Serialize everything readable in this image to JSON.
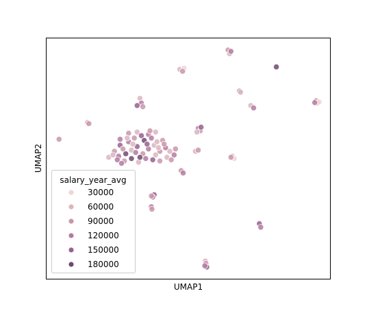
{
  "chart_data": {
    "type": "scatter",
    "xlabel": "UMAP1",
    "ylabel": "UMAP2",
    "xlim": [
      0,
      10
    ],
    "ylim": [
      0,
      10
    ],
    "xticks": false,
    "yticks": false,
    "grid": false,
    "legend": {
      "title": "salary_year_avg",
      "placement": "bottom-left",
      "entries": [
        {
          "label": "30000",
          "color": "#efd6d4"
        },
        {
          "label": "60000",
          "color": "#dbb6bd"
        },
        {
          "label": "90000",
          "color": "#c997ad"
        },
        {
          "label": "120000",
          "color": "#b47aa2"
        },
        {
          "label": "150000",
          "color": "#966290"
        },
        {
          "label": "180000",
          "color": "#6e4a72"
        }
      ]
    },
    "points": [
      {
        "x": 6.4,
        "y": 9.5,
        "v": 90000
      },
      {
        "x": 6.45,
        "y": 9.35,
        "v": 60000
      },
      {
        "x": 6.5,
        "y": 9.45,
        "v": 120000
      },
      {
        "x": 8.1,
        "y": 8.8,
        "v": 180000
      },
      {
        "x": 4.7,
        "y": 8.7,
        "v": 60000
      },
      {
        "x": 4.85,
        "y": 8.75,
        "v": 30000
      },
      {
        "x": 4.8,
        "y": 8.62,
        "v": 90000
      },
      {
        "x": 6.8,
        "y": 7.8,
        "v": 90000
      },
      {
        "x": 6.84,
        "y": 7.75,
        "v": 60000
      },
      {
        "x": 3.3,
        "y": 7.5,
        "v": 60000
      },
      {
        "x": 3.35,
        "y": 7.3,
        "v": 120000
      },
      {
        "x": 3.4,
        "y": 7.15,
        "v": 90000
      },
      {
        "x": 3.2,
        "y": 7.2,
        "v": 150000
      },
      {
        "x": 7.2,
        "y": 7.2,
        "v": 60000
      },
      {
        "x": 7.3,
        "y": 7.1,
        "v": 120000
      },
      {
        "x": 9.5,
        "y": 7.4,
        "v": 90000
      },
      {
        "x": 9.55,
        "y": 7.3,
        "v": 60000
      },
      {
        "x": 9.6,
        "y": 7.35,
        "v": 30000
      },
      {
        "x": 9.45,
        "y": 7.32,
        "v": 120000
      },
      {
        "x": 1.45,
        "y": 6.5,
        "v": 60000
      },
      {
        "x": 1.5,
        "y": 6.45,
        "v": 90000
      },
      {
        "x": 5.35,
        "y": 6.25,
        "v": 120000
      },
      {
        "x": 5.42,
        "y": 6.15,
        "v": 90000
      },
      {
        "x": 5.45,
        "y": 6.3,
        "v": 150000
      },
      {
        "x": 5.3,
        "y": 6.1,
        "v": 60000
      },
      {
        "x": 0.45,
        "y": 5.8,
        "v": 90000
      },
      {
        "x": 5.25,
        "y": 5.3,
        "v": 60000
      },
      {
        "x": 5.35,
        "y": 5.35,
        "v": 90000
      },
      {
        "x": 6.55,
        "y": 5.1,
        "v": 60000
      },
      {
        "x": 6.62,
        "y": 5.0,
        "v": 30000
      },
      {
        "x": 6.5,
        "y": 5.05,
        "v": 90000
      },
      {
        "x": 4.75,
        "y": 4.5,
        "v": 90000
      },
      {
        "x": 4.82,
        "y": 4.4,
        "v": 120000
      },
      {
        "x": 3.8,
        "y": 3.5,
        "v": 150000
      },
      {
        "x": 3.75,
        "y": 3.4,
        "v": 120000
      },
      {
        "x": 3.7,
        "y": 3.45,
        "v": 90000
      },
      {
        "x": 3.7,
        "y": 3.0,
        "v": 120000
      },
      {
        "x": 3.72,
        "y": 2.9,
        "v": 90000
      },
      {
        "x": 7.5,
        "y": 2.3,
        "v": 150000
      },
      {
        "x": 7.55,
        "y": 2.15,
        "v": 120000
      },
      {
        "x": 5.6,
        "y": 0.75,
        "v": 60000
      },
      {
        "x": 5.62,
        "y": 0.65,
        "v": 90000
      },
      {
        "x": 5.65,
        "y": 0.5,
        "v": 150000
      },
      {
        "x": 5.58,
        "y": 0.55,
        "v": 120000
      },
      {
        "x": 2.6,
        "y": 5.8,
        "v": 120000
      },
      {
        "x": 2.9,
        "y": 6.05,
        "v": 90000
      },
      {
        "x": 3.2,
        "y": 6.1,
        "v": 60000
      },
      {
        "x": 3.35,
        "y": 5.95,
        "v": 150000
      },
      {
        "x": 3.6,
        "y": 6.0,
        "v": 120000
      },
      {
        "x": 3.85,
        "y": 6.1,
        "v": 60000
      },
      {
        "x": 2.4,
        "y": 5.3,
        "v": 90000
      },
      {
        "x": 2.2,
        "y": 5.05,
        "v": 60000
      },
      {
        "x": 2.55,
        "y": 5.1,
        "v": 120000
      },
      {
        "x": 2.8,
        "y": 5.2,
        "v": 180000
      },
      {
        "x": 3.0,
        "y": 5.35,
        "v": 60000
      },
      {
        "x": 3.2,
        "y": 5.5,
        "v": 150000
      },
      {
        "x": 3.4,
        "y": 5.2,
        "v": 90000
      },
      {
        "x": 3.6,
        "y": 5.4,
        "v": 120000
      },
      {
        "x": 3.8,
        "y": 5.55,
        "v": 60000
      },
      {
        "x": 4.0,
        "y": 5.3,
        "v": 90000
      },
      {
        "x": 4.2,
        "y": 5.45,
        "v": 120000
      },
      {
        "x": 4.35,
        "y": 5.3,
        "v": 60000
      },
      {
        "x": 4.55,
        "y": 5.4,
        "v": 90000
      },
      {
        "x": 2.6,
        "y": 5.55,
        "v": 150000
      },
      {
        "x": 2.9,
        "y": 5.7,
        "v": 120000
      },
      {
        "x": 3.1,
        "y": 5.85,
        "v": 90000
      },
      {
        "x": 3.45,
        "y": 5.75,
        "v": 180000
      },
      {
        "x": 3.7,
        "y": 5.85,
        "v": 120000
      },
      {
        "x": 3.9,
        "y": 5.7,
        "v": 60000
      },
      {
        "x": 4.1,
        "y": 5.75,
        "v": 90000
      },
      {
        "x": 2.5,
        "y": 4.95,
        "v": 120000
      },
      {
        "x": 2.75,
        "y": 4.9,
        "v": 90000
      },
      {
        "x": 3.0,
        "y": 5.0,
        "v": 180000
      },
      {
        "x": 3.25,
        "y": 4.85,
        "v": 60000
      },
      {
        "x": 3.5,
        "y": 5.0,
        "v": 120000
      },
      {
        "x": 3.75,
        "y": 4.95,
        "v": 150000
      },
      {
        "x": 4.0,
        "y": 4.9,
        "v": 90000
      },
      {
        "x": 4.25,
        "y": 5.05,
        "v": 60000
      },
      {
        "x": 4.5,
        "y": 5.15,
        "v": 120000
      },
      {
        "x": 2.35,
        "y": 5.15,
        "v": 60000
      },
      {
        "x": 2.7,
        "y": 5.4,
        "v": 90000
      },
      {
        "x": 3.15,
        "y": 5.25,
        "v": 120000
      },
      {
        "x": 3.55,
        "y": 5.6,
        "v": 150000
      },
      {
        "x": 3.95,
        "y": 5.45,
        "v": 60000
      },
      {
        "x": 4.15,
        "y": 5.6,
        "v": 90000
      },
      {
        "x": 2.85,
        "y": 5.85,
        "v": 60000
      },
      {
        "x": 3.65,
        "y": 6.15,
        "v": 90000
      },
      {
        "x": 3.3,
        "y": 5.05,
        "v": 180000
      },
      {
        "x": 2.65,
        "y": 4.8,
        "v": 120000
      },
      {
        "x": 3.85,
        "y": 5.15,
        "v": 60000
      },
      {
        "x": 4.4,
        "y": 4.95,
        "v": 90000
      },
      {
        "x": 3.05,
        "y": 5.6,
        "v": 60000
      }
    ]
  }
}
